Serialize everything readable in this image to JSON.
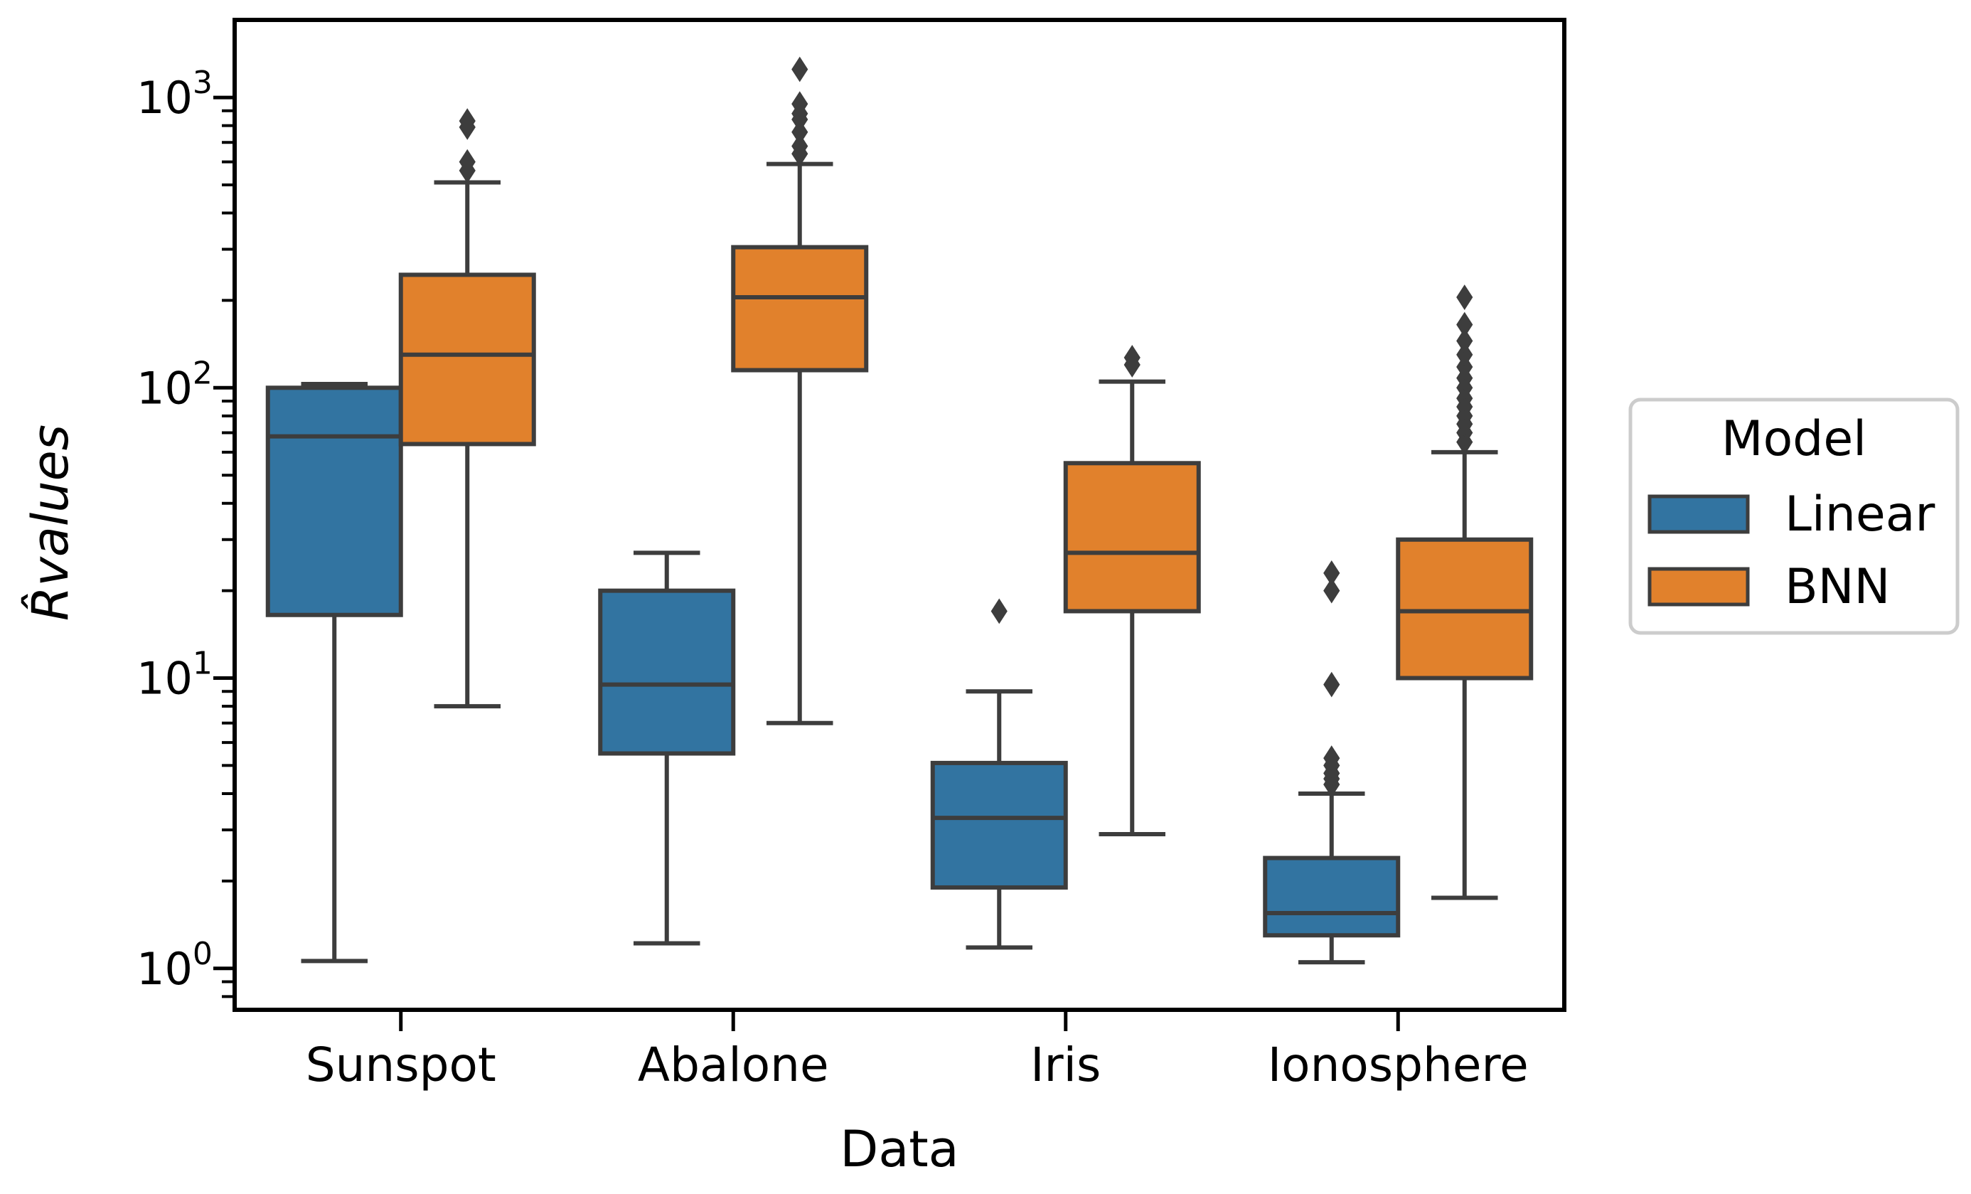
{
  "chart_data": {
    "type": "box",
    "title": "",
    "xlabel": "Data",
    "ylabel": "R̂values",
    "yscale": "log",
    "ylim": [
      0.72,
      1850
    ],
    "categories": [
      "Sunspot",
      "Abalone",
      "Iris",
      "Ionosphere"
    ],
    "y_ticks": [
      {
        "value": 1,
        "base": "10",
        "exp": "0"
      },
      {
        "value": 10,
        "base": "10",
        "exp": "1"
      },
      {
        "value": 100,
        "base": "10",
        "exp": "2"
      },
      {
        "value": 1000,
        "base": "10",
        "exp": "3"
      }
    ],
    "legend": {
      "title": "Model",
      "placement": "right, outside plot",
      "entries": [
        {
          "name": "Linear",
          "color": "#3274a1"
        },
        {
          "name": "BNN",
          "color": "#e1812c"
        }
      ]
    },
    "series": [
      {
        "name": "Linear",
        "color": "#3274a1",
        "boxes": [
          {
            "category": "Sunspot",
            "whislo": 1.06,
            "q1": 16.5,
            "median": 68,
            "q3": 100,
            "whishi": 103,
            "fliers": []
          },
          {
            "category": "Abalone",
            "whislo": 1.22,
            "q1": 5.5,
            "median": 9.5,
            "q3": 20,
            "whishi": 27,
            "fliers": []
          },
          {
            "category": "Iris",
            "whislo": 1.18,
            "q1": 1.9,
            "median": 3.3,
            "q3": 5.1,
            "whishi": 9,
            "fliers": [
              17
            ]
          },
          {
            "category": "Ionosphere",
            "whislo": 1.05,
            "q1": 1.3,
            "median": 1.55,
            "q3": 2.4,
            "whishi": 4.0,
            "fliers": [
              4.3,
              4.5,
              4.7,
              5.0,
              5.3,
              9.5,
              20,
              23
            ]
          }
        ]
      },
      {
        "name": "BNN",
        "color": "#e1812c",
        "boxes": [
          {
            "category": "Sunspot",
            "whislo": 8,
            "q1": 64,
            "median": 130,
            "q3": 245,
            "whishi": 510,
            "fliers": [
              560,
              600,
              790,
              830
            ]
          },
          {
            "category": "Abalone",
            "whislo": 7,
            "q1": 115,
            "median": 205,
            "q3": 305,
            "whishi": 590,
            "fliers": [
              640,
              680,
              760,
              840,
              880,
              950,
              1250
            ]
          },
          {
            "category": "Iris",
            "whislo": 2.9,
            "q1": 17,
            "median": 27,
            "q3": 55,
            "whishi": 105,
            "fliers": [
              120,
              127
            ]
          },
          {
            "category": "Ionosphere",
            "whislo": 1.75,
            "q1": 10,
            "median": 17,
            "q3": 30,
            "whishi": 60,
            "fliers": [
              65,
              70,
              75,
              80,
              86,
              92,
              100,
              108,
              118,
              130,
              145,
              165,
              205
            ]
          }
        ]
      }
    ]
  }
}
